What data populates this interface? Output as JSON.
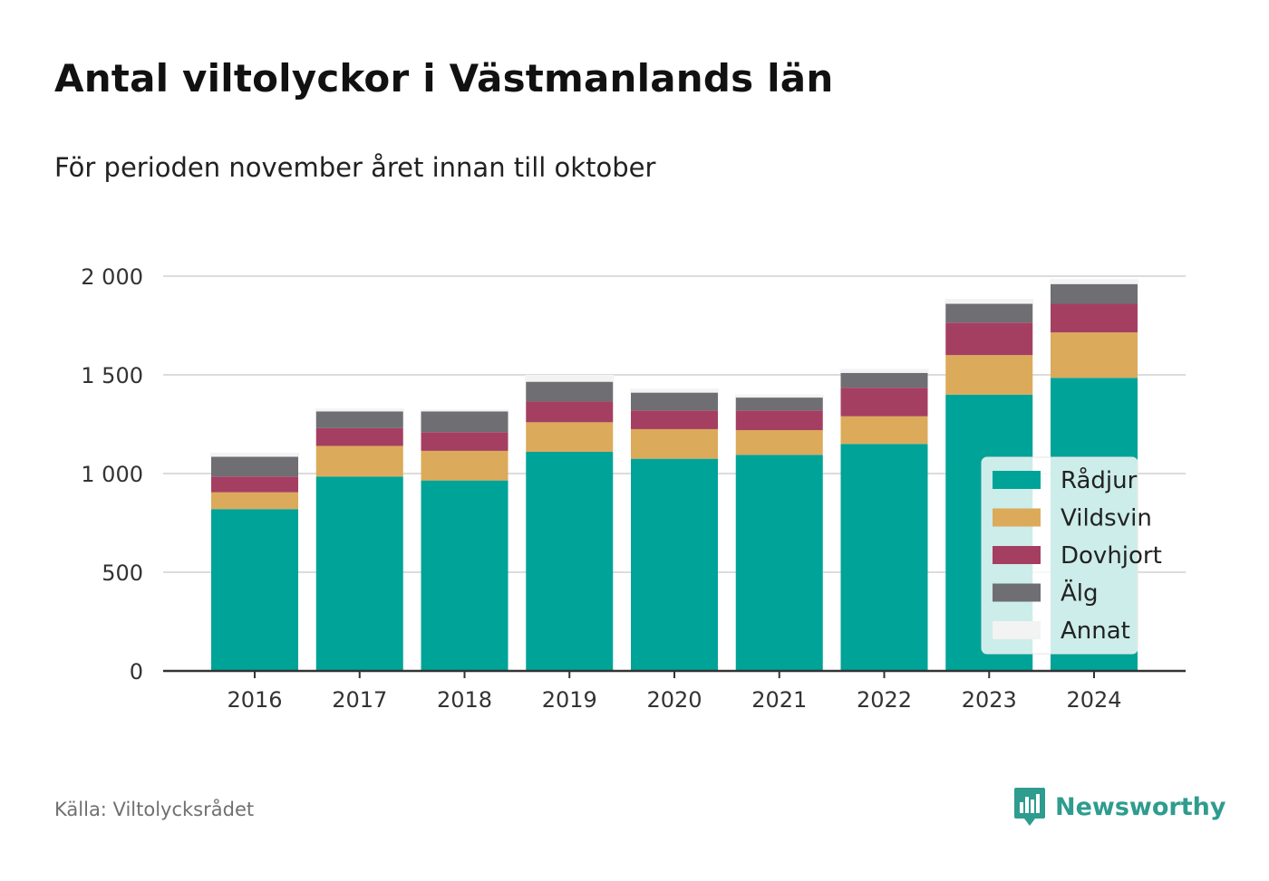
{
  "title": "Antal viltolyckor i Västmanlands län",
  "subtitle": "För perioden november året innan till oktober",
  "source": "Källa: Viltolycksrådet",
  "brand": {
    "name": "Newsworthy",
    "icon": "newsworthy-logo-icon",
    "color": "#2e9c8e"
  },
  "chart_data": {
    "type": "bar",
    "stacked": true,
    "categories": [
      "2016",
      "2017",
      "2018",
      "2019",
      "2020",
      "2021",
      "2022",
      "2023",
      "2024"
    ],
    "ylim": [
      0,
      2000
    ],
    "yticks": [
      0,
      500,
      1000,
      1500,
      2000
    ],
    "ytick_labels": [
      "0",
      "500",
      "1 000",
      "1 500",
      "2 000"
    ],
    "grid": true,
    "legend_position": "right",
    "series": [
      {
        "name": "Rådjur",
        "color": "#00a398",
        "values": [
          820,
          985,
          965,
          1110,
          1075,
          1095,
          1150,
          1400,
          1485
        ]
      },
      {
        "name": "Vildsvin",
        "color": "#dbaa5a",
        "values": [
          85,
          155,
          150,
          150,
          150,
          125,
          140,
          200,
          230
        ]
      },
      {
        "name": "Dovhjort",
        "color": "#a53f62",
        "values": [
          80,
          90,
          95,
          105,
          95,
          100,
          145,
          165,
          145
        ]
      },
      {
        "name": "Älg",
        "color": "#6e6e73",
        "values": [
          100,
          85,
          105,
          100,
          90,
          65,
          75,
          95,
          100
        ]
      },
      {
        "name": "Annat",
        "color": "#f3f3f3",
        "values": [
          20,
          15,
          10,
          35,
          20,
          15,
          20,
          25,
          25
        ]
      }
    ]
  }
}
